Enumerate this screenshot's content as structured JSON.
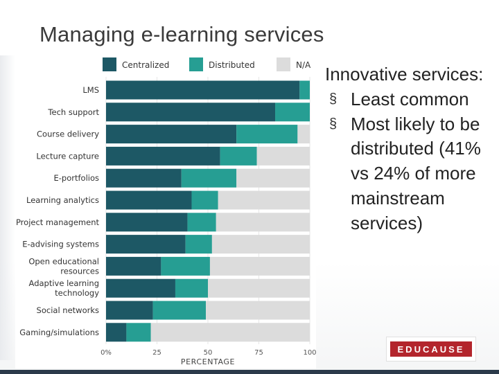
{
  "slide": {
    "title": "Managing e-learning services",
    "bullets": [
      {
        "level": 1,
        "text": "Innovative services:"
      },
      {
        "level": 2,
        "marker": "§",
        "text": "Least common"
      },
      {
        "level": 2,
        "marker": "§",
        "text": "Most likely to be distributed (41% vs 24% of more mainstream services)"
      }
    ],
    "logo": "EDUCAUSE"
  },
  "colors": {
    "centralized": "#1d5865",
    "distributed": "#269e93",
    "na": "#dcdcdc",
    "text": "#222222",
    "logo_red": "#b3252c",
    "bottom_bar": "#2b3a4a"
  },
  "chart_data": {
    "type": "bar",
    "orientation": "horizontal",
    "stacked": true,
    "categories": [
      "LMS",
      "Tech support",
      "Course delivery",
      "Lecture capture",
      "E-portfolios",
      "Learning analytics",
      "Project management",
      "E-advising systems",
      "Open educational resources",
      "Adaptive learning technology",
      "Social networks",
      "Gaming/simulations"
    ],
    "series": [
      {
        "name": "Centralized",
        "values": [
          95,
          83,
          64,
          56,
          37,
          42,
          40,
          39,
          27,
          34,
          23,
          10
        ]
      },
      {
        "name": "Distributed",
        "values": [
          5,
          17,
          30,
          18,
          27,
          13,
          14,
          13,
          24,
          16,
          26,
          12
        ]
      },
      {
        "name": "N/A",
        "values": [
          0,
          0,
          6,
          26,
          36,
          45,
          46,
          48,
          49,
          50,
          51,
          78
        ]
      }
    ],
    "xlabel": "PERCENTAGE",
    "xticks": [
      "0%",
      "25",
      "50",
      "75",
      "100"
    ],
    "xtick_values": [
      0,
      25,
      50,
      75,
      100
    ],
    "xlim": [
      0,
      100
    ],
    "legend_position": "top",
    "grid": true
  }
}
